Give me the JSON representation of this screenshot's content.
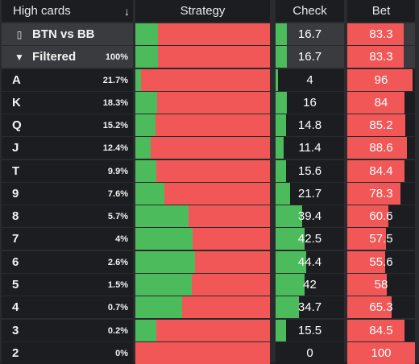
{
  "header": {
    "label": "High cards",
    "sort_icon": "arrow-down-icon",
    "strategy": "Strategy",
    "check": "Check",
    "bet": "Bet"
  },
  "colors": {
    "check": "#4cbb5c",
    "bet": "#f25757",
    "row_bg": "#1c1d20",
    "summary_bg": "#3a3b3f"
  },
  "summary_rows": [
    {
      "label": "BTN vs BB",
      "icon": "bookmark-icon",
      "icon_glyph": "▯",
      "pct": "",
      "check": "16.7",
      "bet": "83.3",
      "check_value": 16.7,
      "bet_value": 83.3
    },
    {
      "label": "Filtered",
      "icon": "filter-icon",
      "icon_glyph": "▼",
      "pct": "100%",
      "check": "16.7",
      "bet": "83.3",
      "check_value": 16.7,
      "bet_value": 83.3
    }
  ],
  "rows": [
    {
      "label": "A",
      "pct": "21.7%",
      "check": "4",
      "bet": "96",
      "check_value": 4,
      "bet_value": 96
    },
    {
      "label": "K",
      "pct": "18.3%",
      "check": "16",
      "bet": "84",
      "check_value": 16,
      "bet_value": 84
    },
    {
      "label": "Q",
      "pct": "15.2%",
      "check": "14.8",
      "bet": "85.2",
      "check_value": 14.8,
      "bet_value": 85.2
    },
    {
      "label": "J",
      "pct": "12.4%",
      "check": "11.4",
      "bet": "88.6",
      "check_value": 11.4,
      "bet_value": 88.6
    },
    {
      "label": "T",
      "pct": "9.9%",
      "check": "15.6",
      "bet": "84.4",
      "check_value": 15.6,
      "bet_value": 84.4
    },
    {
      "label": "9",
      "pct": "7.6%",
      "check": "21.7",
      "bet": "78.3",
      "check_value": 21.7,
      "bet_value": 78.3
    },
    {
      "label": "8",
      "pct": "5.7%",
      "check": "39.4",
      "bet": "60.6",
      "check_value": 39.4,
      "bet_value": 60.6
    },
    {
      "label": "7",
      "pct": "4%",
      "check": "42.5",
      "bet": "57.5",
      "check_value": 42.5,
      "bet_value": 57.5
    },
    {
      "label": "6",
      "pct": "2.6%",
      "check": "44.4",
      "bet": "55.6",
      "check_value": 44.4,
      "bet_value": 55.6
    },
    {
      "label": "5",
      "pct": "1.5%",
      "check": "42",
      "bet": "58",
      "check_value": 42,
      "bet_value": 58
    },
    {
      "label": "4",
      "pct": "0.7%",
      "check": "34.7",
      "bet": "65.3",
      "check_value": 34.7,
      "bet_value": 65.3
    },
    {
      "label": "3",
      "pct": "0.2%",
      "check": "15.5",
      "bet": "84.5",
      "check_value": 15.5,
      "bet_value": 84.5
    },
    {
      "label": "2",
      "pct": "0%",
      "check": "0",
      "bet": "100",
      "check_value": 0,
      "bet_value": 100
    }
  ]
}
